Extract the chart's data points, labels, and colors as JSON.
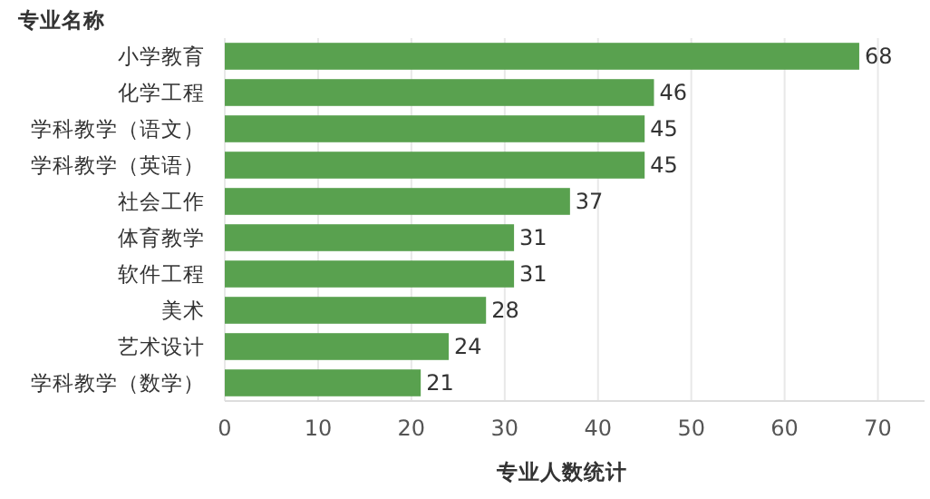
{
  "chart_data": {
    "type": "bar",
    "orientation": "horizontal",
    "ylabel": "专业名称",
    "xlabel": "专业人数统计",
    "categories": [
      "小学教育",
      "化学工程",
      "学科教学（语文）",
      "学科教学（英语）",
      "社会工作",
      "体育教学",
      "软件工程",
      "美术",
      "艺术设计",
      "学科教学（数学）"
    ],
    "values": [
      68,
      46,
      45,
      45,
      37,
      31,
      31,
      28,
      24,
      21
    ],
    "color": "#59a14f",
    "xlim": [
      0,
      75
    ],
    "xticks": [
      0,
      10,
      20,
      30,
      40,
      50,
      60,
      70
    ],
    "grid": "x",
    "data_labels": true
  }
}
